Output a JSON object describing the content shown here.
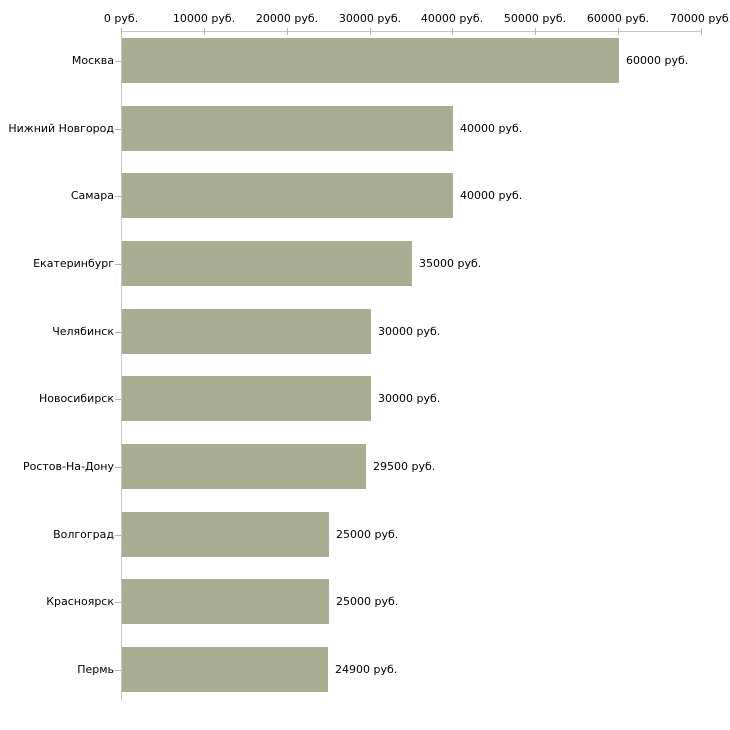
{
  "chart_data": {
    "type": "bar",
    "orientation": "horizontal",
    "title": "",
    "xlabel": "",
    "ylabel": "",
    "categories": [
      "Москва",
      "Нижний Новгород",
      "Самара",
      "Екатеринбург",
      "Челябинск",
      "Новосибирск",
      "Ростов-На-Дону",
      "Волгоград",
      "Красноярск",
      "Пермь"
    ],
    "values": [
      60000,
      40000,
      40000,
      35000,
      30000,
      30000,
      29500,
      25000,
      25000,
      24900
    ],
    "value_labels": [
      "60000 руб.",
      "40000 руб.",
      "40000 руб.",
      "35000 руб.",
      "30000 руб.",
      "30000 руб.",
      "29500 руб.",
      "25000 руб.",
      "25000 руб.",
      "24900 руб."
    ],
    "x_axis": {
      "position": "top",
      "min": 0,
      "max": 70000,
      "tick_values": [
        0,
        10000,
        20000,
        30000,
        40000,
        50000,
        60000,
        70000
      ],
      "tick_labels": [
        "0 руб.",
        "10000 руб.",
        "20000 руб.",
        "30000 руб.",
        "40000 руб.",
        "50000 руб.",
        "60000 руб.",
        "70000 руб."
      ]
    },
    "grid": "off",
    "legend": "none",
    "colors": {
      "bar": "#a9ae93",
      "axis_line": "#c8c8c8",
      "tick": "#b9ba8c",
      "text": "#000000",
      "background": "#ffffff"
    }
  }
}
